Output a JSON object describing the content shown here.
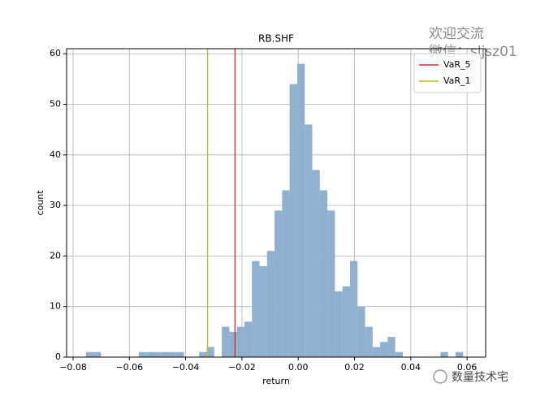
{
  "chart_data": {
    "type": "histogram",
    "title": "RB.SHF",
    "x_label": "return",
    "y_label": "count",
    "color": "#8fb0cf",
    "bins": [
      -0.0754,
      -0.07272,
      -0.07004,
      -0.06736,
      -0.06468,
      -0.062,
      -0.05932,
      -0.05664,
      -0.05396,
      -0.05128,
      -0.0486,
      -0.04592,
      -0.04324,
      -0.04056,
      -0.03788,
      -0.0352,
      -0.03252,
      -0.02984,
      -0.02716,
      -0.02448,
      -0.0218,
      -0.01912,
      -0.01644,
      -0.01376,
      -0.01108,
      -0.0084,
      -0.00572,
      -0.00304,
      -0.00036,
      0.00232,
      0.005,
      0.00768,
      0.01036,
      0.01304,
      0.01572,
      0.0184,
      0.02108,
      0.02376,
      0.02644,
      0.02912,
      0.0318,
      0.03448,
      0.03716,
      0.03984,
      0.04252,
      0.0452,
      0.04788,
      0.05056,
      0.05324,
      0.05592,
      0.0586
    ],
    "values": [
      1,
      1,
      0,
      0,
      0,
      0,
      0,
      1,
      1,
      1,
      1,
      1,
      1,
      0,
      0,
      1,
      2,
      0,
      6,
      5,
      6,
      7,
      19,
      18,
      21,
      29,
      33,
      54,
      58,
      46,
      37,
      33,
      29,
      13,
      14,
      19,
      10,
      6,
      2,
      3,
      4,
      1,
      0,
      0,
      0,
      0,
      0,
      1,
      0,
      1
    ],
    "vlines": [
      {
        "name": "VaR_5",
        "color": "#d62728",
        "x": -0.02245
      },
      {
        "name": "VaR_1",
        "color": "#bcbd22",
        "x": -0.0322
      }
    ],
    "legend": "upper right",
    "grid": true,
    "xlim": [
      -0.0823,
      0.0666
    ],
    "ylim": [
      0,
      61
    ],
    "xticks": [
      {
        "value": -0.08,
        "label": "−0.08"
      },
      {
        "value": -0.06,
        "label": "−0.06"
      },
      {
        "value": -0.04,
        "label": "−0.04"
      },
      {
        "value": -0.02,
        "label": "−0.02"
      },
      {
        "value": 0,
        "label": "0.00"
      },
      0.02,
      0.04,
      0.06
    ],
    "yticks": [
      0,
      10,
      20,
      30,
      40,
      50,
      60
    ],
    "watermark": [
      "欢迎交流",
      "微信：sljsz01"
    ],
    "brand": "数量技术宅"
  }
}
